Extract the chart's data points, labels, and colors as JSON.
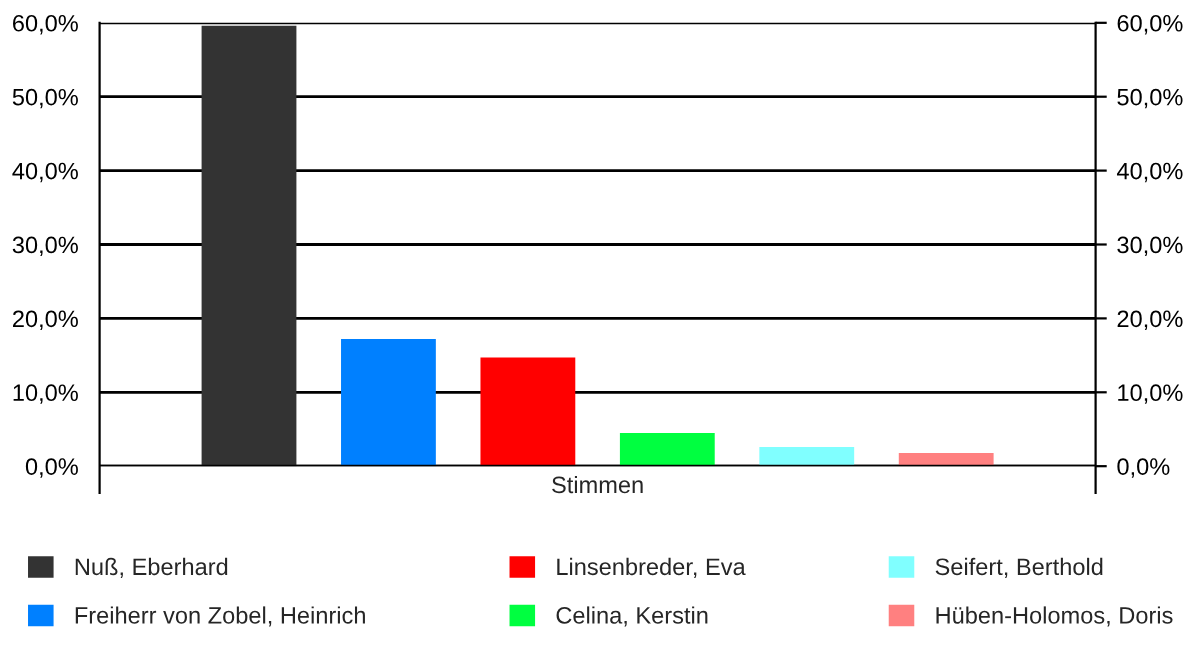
{
  "chart_data": {
    "type": "bar",
    "categories": [
      "Stimmen"
    ],
    "series": [
      {
        "name": "Nuß, Eberhard",
        "color": "#333333",
        "values": [
          59.6
        ]
      },
      {
        "name": "Freiherr von Zobel, Heinrich",
        "color": "#0080ff",
        "values": [
          17.2
        ]
      },
      {
        "name": "Linsenbreder, Eva",
        "color": "#ff0000",
        "values": [
          14.7
        ]
      },
      {
        "name": "Celina, Kerstin",
        "color": "#00ff40",
        "values": [
          4.5
        ]
      },
      {
        "name": "Seifert, Berthold",
        "color": "#80ffff",
        "values": [
          2.6
        ]
      },
      {
        "name": "Hüben-Holomos, Doris",
        "color": "#ff8080",
        "values": [
          1.8
        ]
      }
    ],
    "ylim": [
      0,
      60
    ],
    "yticks": [
      {
        "value": 0,
        "label": "0,0%"
      },
      {
        "value": 10,
        "label": "10,0%"
      },
      {
        "value": 20,
        "label": "20,0%"
      },
      {
        "value": 30,
        "label": "30,0%"
      },
      {
        "value": 40,
        "label": "40,0%"
      },
      {
        "value": 50,
        "label": "50,0%"
      },
      {
        "value": 60,
        "label": "60,0%"
      }
    ],
    "grid": "y",
    "legend": "bottom"
  }
}
